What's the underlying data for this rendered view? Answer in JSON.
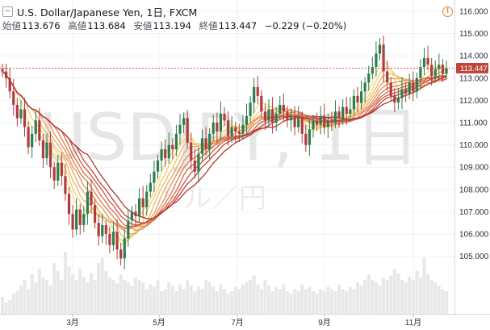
{
  "header": {
    "title": "U.S. Dollar/Japanese Yen, 1日, FXCM",
    "collapse_icon": "minus-box-icon"
  },
  "ohlc": {
    "open_label": "始値",
    "open": "113.676",
    "high_label": "高値",
    "high": "113.684",
    "low_label": "安値",
    "low": "113.194",
    "close_label": "終値",
    "close": "113.447",
    "change": "−0.229 (−0.20%)"
  },
  "alert_icon": "warning-icon",
  "watermark": {
    "symbol": "USDJPY, 1日",
    "subtitle": "ドル／円"
  },
  "colors": {
    "up": "#2e7d4f",
    "down": "#b23b3b",
    "ma_fast": "#f5e27a",
    "ma_slow": "#b8332c",
    "volume": "#e8e8e8",
    "last_price_bg": "#c0453b",
    "last_price_line": "#d9534f"
  },
  "chart_data": {
    "type": "candlestick",
    "title": "U.S. Dollar/Japanese Yen, 1日, FXCM",
    "y_axis": {
      "ticks": [
        "116.000",
        "115.000",
        "114.000",
        "113.000",
        "112.000",
        "111.000",
        "110.000",
        "109.000",
        "108.000",
        "107.000",
        "106.000",
        "105.000"
      ],
      "min": 104.2,
      "max": 116.5,
      "position": "right"
    },
    "x_axis": {
      "ticks": [
        "3月",
        "5月",
        "7月",
        "9月",
        "11月"
      ]
    },
    "last_price": "113.447",
    "grid": true,
    "moving_average_ribbon": {
      "count": 10,
      "colors": [
        "#f5e27a",
        "#f2cf6e",
        "#efbb66",
        "#eba65e",
        "#e69257",
        "#e07c50",
        "#d8684a",
        "#ce5443",
        "#c2413c",
        "#b8332c"
      ]
    },
    "candles_close": [
      113.3,
      113.0,
      112.4,
      111.8,
      111.2,
      111.6,
      110.8,
      109.9,
      110.5,
      111.1,
      110.2,
      109.4,
      110.1,
      109.0,
      108.4,
      109.2,
      108.6,
      107.8,
      106.9,
      106.2,
      107.1,
      106.4,
      106.9,
      107.9,
      107.3,
      106.5,
      105.9,
      106.4,
      106.0,
      105.5,
      106.1,
      105.3,
      104.9,
      105.8,
      106.6,
      107.0,
      106.8,
      107.6,
      107.2,
      107.9,
      108.3,
      108.8,
      109.3,
      109.8,
      109.4,
      110.0,
      109.8,
      110.5,
      110.9,
      111.2,
      110.1,
      109.3,
      108.8,
      109.6,
      110.3,
      109.8,
      110.5,
      111.0,
      110.6,
      111.4,
      111.1,
      110.4,
      110.8,
      110.6,
      110.5,
      110.9,
      111.3,
      111.9,
      112.6,
      112.2,
      111.5,
      111.1,
      111.6,
      111.0,
      111.4,
      111.8,
      111.5,
      111.1,
      111.3,
      110.8,
      111.2,
      110.5,
      110.0,
      110.7,
      111.1,
      110.9,
      111.3,
      110.8,
      111.1,
      111.0,
      111.5,
      111.2,
      111.7,
      111.4,
      111.6,
      112.2,
      111.9,
      112.4,
      112.8,
      113.2,
      113.5,
      114.1,
      114.5,
      113.3,
      112.8,
      112.2,
      111.9,
      112.1,
      112.5,
      112.3,
      112.8,
      112.4,
      113.0,
      113.5,
      113.9,
      113.6,
      113.1,
      113.4,
      113.6,
      113.2,
      113.447
    ],
    "volume_relative": [
      0.15,
      0.1,
      0.12,
      0.18,
      0.2,
      0.25,
      0.3,
      0.22,
      0.35,
      0.28,
      0.4,
      0.32,
      0.3,
      0.25,
      0.45,
      0.38,
      0.3,
      0.55,
      0.42,
      0.35,
      0.3,
      0.4,
      0.33,
      0.28,
      0.36,
      0.3,
      0.45,
      0.5,
      0.38,
      0.32,
      0.3,
      0.27,
      0.35,
      0.3,
      0.28,
      0.25,
      0.32,
      0.3,
      0.28,
      0.22,
      0.26,
      0.24,
      0.3,
      0.2,
      0.22,
      0.28,
      0.25,
      0.2,
      0.26,
      0.22,
      0.3,
      0.25,
      0.2,
      0.24,
      0.22,
      0.3,
      0.28,
      0.24,
      0.2,
      0.26,
      0.22,
      0.18,
      0.2,
      0.24,
      0.22,
      0.26,
      0.28,
      0.3,
      0.34,
      0.26,
      0.22,
      0.3,
      0.25,
      0.2,
      0.24,
      0.22,
      0.26,
      0.2,
      0.18,
      0.22,
      0.2,
      0.26,
      0.22,
      0.24,
      0.2,
      0.18,
      0.22,
      0.2,
      0.24,
      0.22,
      0.2,
      0.26,
      0.22,
      0.2,
      0.24,
      0.22,
      0.28,
      0.25,
      0.3,
      0.35,
      0.3,
      0.28,
      0.25,
      0.32,
      0.3,
      0.34,
      0.4,
      0.36,
      0.3,
      0.28,
      0.33,
      0.3,
      0.38,
      0.32,
      0.5,
      0.35,
      0.3,
      0.28,
      0.25,
      0.22,
      0.2
    ]
  }
}
